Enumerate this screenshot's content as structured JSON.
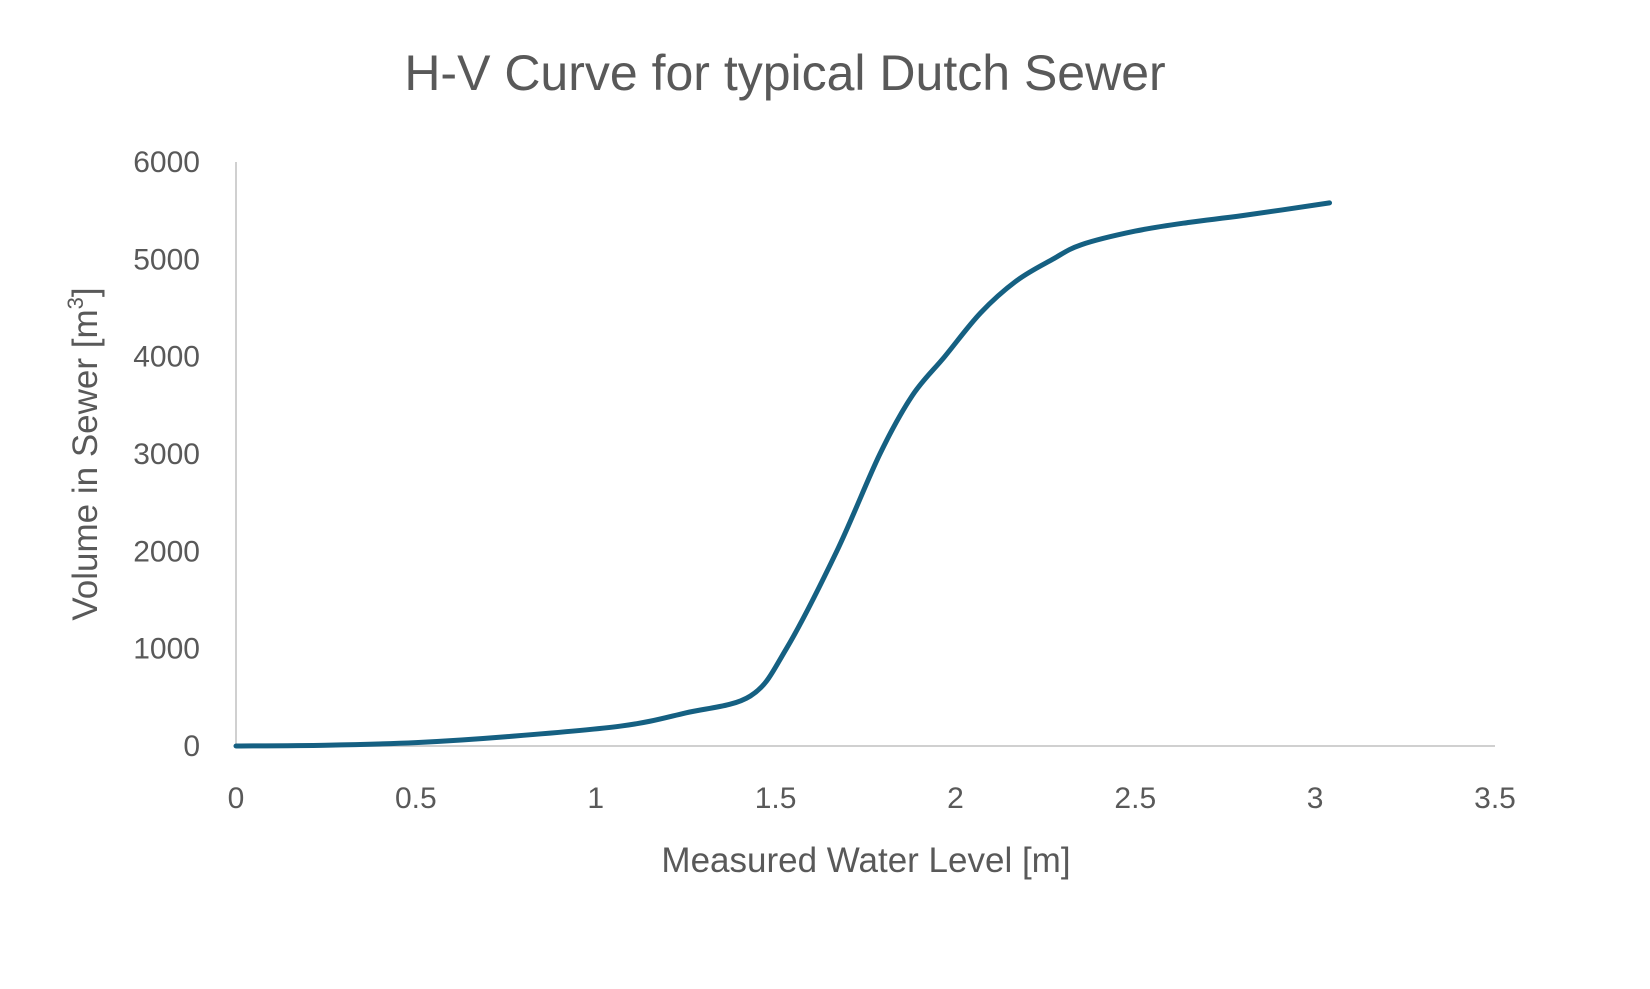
{
  "chart_data": {
    "type": "line",
    "title": "H-V Curve for typical Dutch Sewer",
    "xlabel": "Measured Water Level [m]",
    "ylabel": "Volume in Sewer [m",
    "ylabel_sup": "3",
    "ylabel_end": "]",
    "xlim": [
      0,
      3.5
    ],
    "ylim": [
      0,
      6000
    ],
    "xticks": [
      "0",
      "0.5",
      "1",
      "1.5",
      "2",
      "2.5",
      "3",
      "3.5"
    ],
    "yticks": [
      "0",
      "1000",
      "2000",
      "3000",
      "4000",
      "5000",
      "6000"
    ],
    "grid": false,
    "legend": "none",
    "series": [
      {
        "name": "H-V Curve",
        "color": "#156082",
        "x": [
          0,
          0.25,
          0.5,
          0.75,
          1.07,
          1.25,
          1.43,
          1.53,
          1.67,
          1.79,
          1.88,
          1.97,
          2.07,
          2.17,
          2.27,
          2.35,
          2.5,
          2.65,
          2.8,
          3.04
        ],
        "y": [
          0,
          8,
          35,
          95,
          205,
          340,
          514,
          1000,
          2000,
          3000,
          3600,
          4000,
          4450,
          4780,
          5000,
          5150,
          5290,
          5380,
          5450,
          5580
        ]
      }
    ]
  }
}
